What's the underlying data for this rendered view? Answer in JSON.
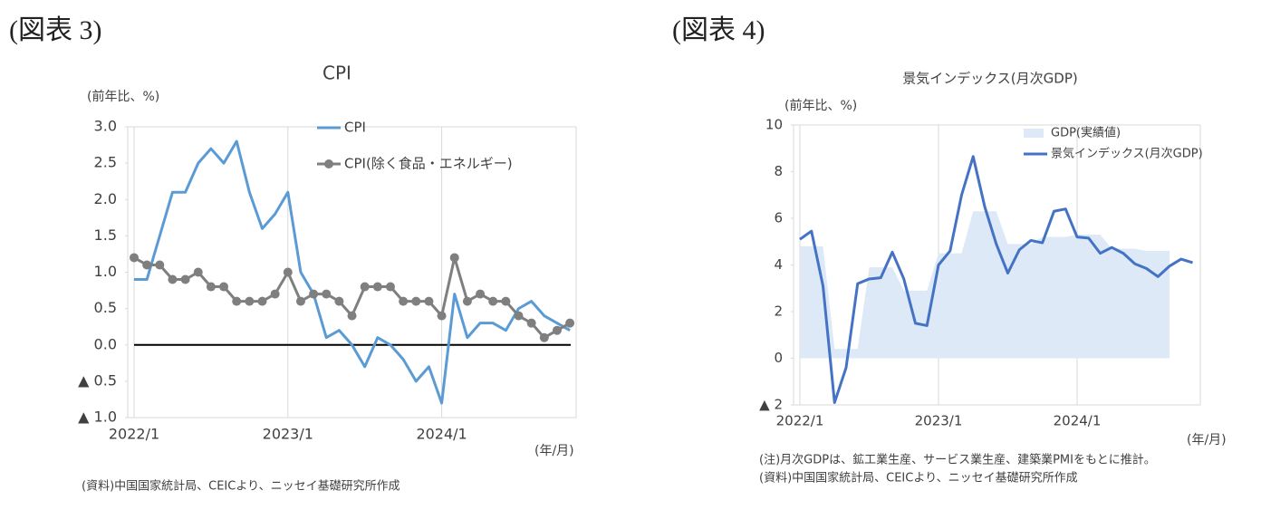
{
  "chart_data": [
    {
      "type": "line",
      "figure_label": "(図表 3)",
      "title": "CPI",
      "y_label": "(前年比、%)",
      "x_label": "(年/月)",
      "notes": [
        "(資料)中国国家統計局、CEICより、ニッセイ基礎研究所作成"
      ],
      "categories": [
        "2022/1",
        null,
        null,
        null,
        null,
        null,
        null,
        null,
        null,
        null,
        null,
        null,
        "2023/1",
        null,
        null,
        null,
        null,
        null,
        null,
        null,
        null,
        null,
        null,
        null,
        "2024/1",
        null,
        null,
        null,
        null,
        null,
        null,
        null,
        null,
        null,
        null
      ],
      "series": [
        {
          "name": "CPI",
          "color": "#5b9bd5",
          "marker": false,
          "values": [
            0.9,
            0.9,
            1.5,
            2.1,
            2.1,
            2.5,
            2.7,
            2.5,
            2.8,
            2.1,
            1.6,
            1.8,
            2.1,
            1.0,
            0.7,
            0.1,
            0.2,
            0.0,
            -0.3,
            0.1,
            0.0,
            -0.2,
            -0.5,
            -0.3,
            -0.8,
            0.7,
            0.1,
            0.3,
            0.3,
            0.2,
            0.5,
            0.6,
            0.4,
            0.3,
            0.2
          ]
        },
        {
          "name": "CPI(除く食品・エネルギー)",
          "color": "#7f7f7f",
          "marker": true,
          "values": [
            1.2,
            1.1,
            1.1,
            0.9,
            0.9,
            1.0,
            0.8,
            0.8,
            0.6,
            0.6,
            0.6,
            0.7,
            1.0,
            0.6,
            0.7,
            0.7,
            0.6,
            0.4,
            0.8,
            0.8,
            0.8,
            0.6,
            0.6,
            0.6,
            0.4,
            1.2,
            0.6,
            0.7,
            0.6,
            0.6,
            0.4,
            0.3,
            0.1,
            0.2,
            0.3
          ]
        }
      ],
      "ylim": [
        -1,
        3
      ],
      "yticks": [
        {
          "value": 3,
          "label": "3.0"
        },
        {
          "value": 2.5,
          "label": "2.5"
        },
        {
          "value": 2,
          "label": "2.0"
        },
        {
          "value": 1.5,
          "label": "1.5"
        },
        {
          "value": 1,
          "label": "1.0"
        },
        {
          "value": 0.5,
          "label": "0.5"
        },
        {
          "value": 0,
          "label": "0.0"
        },
        {
          "value": -0.5,
          "label": "▲ 0.5"
        },
        {
          "value": -1,
          "label": "▲ 1.0"
        }
      ],
      "grid": true,
      "zero_line": true
    },
    {
      "type": "line",
      "figure_label": "(図表 4)",
      "title": "景気インデックス(月次GDP)",
      "y_label": "(前年比、%)",
      "x_label": "(年/月)",
      "notes": [
        "(注)月次GDPは、鉱工業生産、サービス業生産、建築業PMIをもとに推計。",
        "(資料)中国国家統計局、CEICより、ニッセイ基礎研究所作成"
      ],
      "categories": [
        "2022/1",
        null,
        null,
        null,
        null,
        null,
        null,
        null,
        null,
        null,
        null,
        null,
        "2023/1",
        null,
        null,
        null,
        null,
        null,
        null,
        null,
        null,
        null,
        null,
        null,
        "2024/1",
        null,
        null,
        null,
        null,
        null,
        null,
        null,
        null,
        null,
        null
      ],
      "series": [
        {
          "name": "GDP(実績値)",
          "color": "#dde9f6",
          "kind": "area",
          "values": [
            4.8,
            4.8,
            4.8,
            0.4,
            0.4,
            0.4,
            3.9,
            3.9,
            3.9,
            2.9,
            2.9,
            2.9,
            4.5,
            4.5,
            4.5,
            6.3,
            6.3,
            6.3,
            4.9,
            4.9,
            4.9,
            5.2,
            5.2,
            5.2,
            5.3,
            5.3,
            5.3,
            4.7,
            4.7,
            4.7,
            4.6,
            4.6,
            4.6,
            null,
            null
          ]
        },
        {
          "name": "景気インデックス(月次GDP)",
          "color": "#4472c4",
          "marker": false,
          "values": [
            5.1,
            5.45,
            3.1,
            -1.9,
            -0.4,
            3.2,
            3.4,
            3.45,
            4.55,
            3.4,
            1.5,
            1.4,
            4.0,
            4.6,
            7.0,
            8.65,
            6.5,
            4.9,
            3.65,
            4.65,
            5.05,
            4.95,
            6.3,
            6.4,
            5.2,
            5.15,
            4.5,
            4.75,
            4.5,
            4.05,
            3.85,
            3.5,
            3.95,
            4.25,
            4.1
          ]
        }
      ],
      "ylim": [
        -2,
        10
      ],
      "yticks": [
        10,
        8,
        6,
        4,
        2,
        0,
        {
          "value": -2,
          "label": "▲ 2"
        }
      ],
      "grid": true,
      "zero_line": false
    }
  ]
}
